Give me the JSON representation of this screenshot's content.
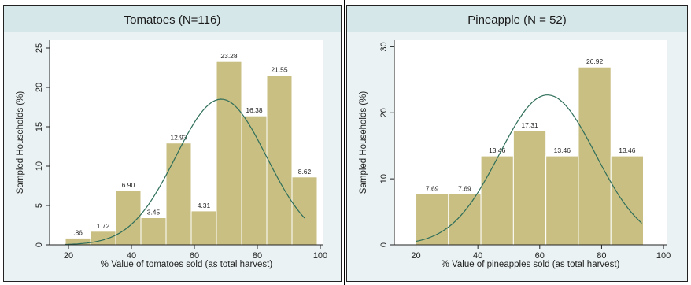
{
  "chart_data": [
    {
      "type": "bar",
      "title": "Tomatoes (N=116)",
      "xlabel": "% Value of tomatoes sold (as total harvest)",
      "ylabel": "Sampled Households (%)",
      "xlim": [
        14,
        101
      ],
      "ylim": [
        0,
        26
      ],
      "xticks": [
        "20",
        "40",
        "60",
        "80",
        "100"
      ],
      "yticks": [
        "0",
        "5",
        "10",
        "15",
        "20",
        "25"
      ],
      "bins": [
        {
          "x0": 19,
          "x1": 27,
          "value": 0.86,
          "label": ".86"
        },
        {
          "x0": 27,
          "x1": 35,
          "value": 1.72,
          "label": "1.72"
        },
        {
          "x0": 35,
          "x1": 43,
          "value": 6.9,
          "label": "6.90"
        },
        {
          "x0": 43,
          "x1": 51,
          "value": 3.45,
          "label": "3.45"
        },
        {
          "x0": 51,
          "x1": 59,
          "value": 12.93,
          "label": "12.93"
        },
        {
          "x0": 59,
          "x1": 67,
          "value": 4.31,
          "label": "4.31"
        },
        {
          "x0": 67,
          "x1": 75,
          "value": 23.28,
          "label": "23.28"
        },
        {
          "x0": 75,
          "x1": 83,
          "value": 16.38,
          "label": "16.38"
        },
        {
          "x0": 83,
          "x1": 91,
          "value": 21.55,
          "label": "21.55"
        },
        {
          "x0": 91,
          "x1": 99,
          "value": 8.62,
          "label": "8.62"
        }
      ],
      "normal_curve": {
        "mean": 68.5,
        "sd": 14.4,
        "peak": 18.5,
        "x_range": [
          19,
          95
        ]
      },
      "colors": {
        "bar": "#c9bf83",
        "bar_edge": "#ffffff",
        "curve": "#2e6e5a",
        "plot_bg": "#ffffff",
        "title_bg": "#d6e7ea"
      },
      "grid": false,
      "legend": "none"
    },
    {
      "type": "bar",
      "title": "Pineapple (N = 52)",
      "xlabel": "% Value of pineapples sold (as total harvest)",
      "ylabel": "Sampled Households (%)",
      "xlim": [
        13,
        101
      ],
      "ylim": [
        0,
        31
      ],
      "xticks": [
        "20",
        "40",
        "60",
        "80",
        "100"
      ],
      "yticks": [
        "0",
        "10",
        "20",
        "30"
      ],
      "bins": [
        {
          "x0": 20,
          "x1": 30.5,
          "value": 7.69,
          "label": "7.69"
        },
        {
          "x0": 30.5,
          "x1": 41,
          "value": 7.69,
          "label": "7.69"
        },
        {
          "x0": 41,
          "x1": 51.5,
          "value": 13.46,
          "label": "13.46"
        },
        {
          "x0": 51.5,
          "x1": 62,
          "value": 17.31,
          "label": "17.31"
        },
        {
          "x0": 62,
          "x1": 72.5,
          "value": 13.46,
          "label": "13.46"
        },
        {
          "x0": 72.5,
          "x1": 83,
          "value": 26.92,
          "label": "26.92"
        },
        {
          "x0": 83,
          "x1": 93.5,
          "value": 13.46,
          "label": "13.46"
        }
      ],
      "normal_curve": {
        "mean": 62.5,
        "sd": 15.5,
        "peak": 22.7,
        "x_range": [
          20,
          93
        ]
      },
      "colors": {
        "bar": "#c9bf83",
        "bar_edge": "#ffffff",
        "curve": "#2e6e5a",
        "plot_bg": "#ffffff",
        "title_bg": "#d6e7ea"
      },
      "grid": false,
      "legend": "none"
    }
  ]
}
